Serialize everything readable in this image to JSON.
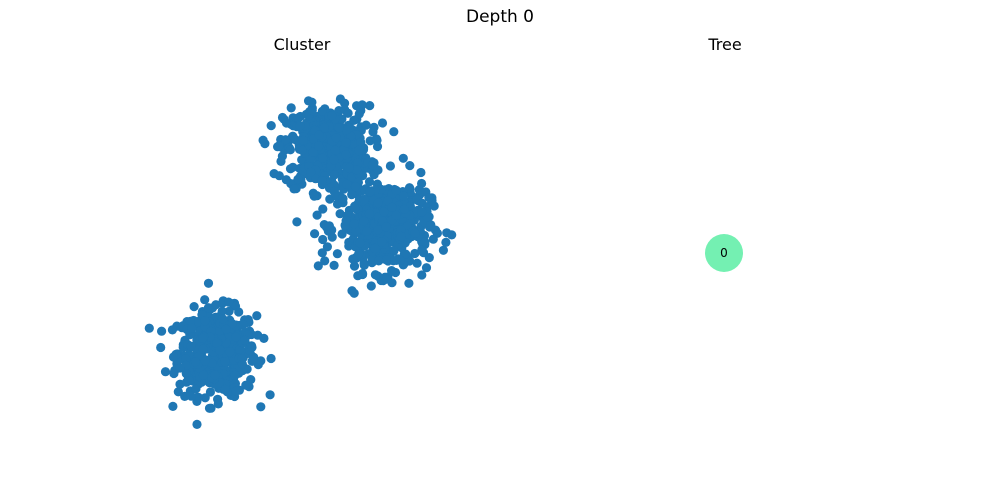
{
  "figure": {
    "title": "Depth 0"
  },
  "panels": {
    "cluster_title": "Cluster",
    "tree_title": "Tree"
  },
  "colors": {
    "points": "#1f77b4",
    "node": "#74f0b2",
    "background": "#ffffff"
  },
  "chart_data": [
    {
      "type": "scatter",
      "title": "Cluster",
      "xlim": [
        0,
        1
      ],
      "ylim": [
        0,
        1
      ],
      "grid": false,
      "axes_visible": false,
      "n_points_approx": 1500,
      "series": [
        {
          "blob_center": [
            0.26,
            0.24
          ],
          "spread": [
            0.055,
            0.055
          ],
          "n": 520
        },
        {
          "blob_center": [
            0.57,
            0.77
          ],
          "spread": [
            0.06,
            0.055
          ],
          "n": 490
        },
        {
          "blob_center": [
            0.73,
            0.57
          ],
          "spread": [
            0.065,
            0.06
          ],
          "n": 490
        }
      ]
    },
    {
      "type": "tree",
      "title": "Tree",
      "nodes": [
        {
          "label": "0"
        }
      ],
      "edges": []
    }
  ]
}
